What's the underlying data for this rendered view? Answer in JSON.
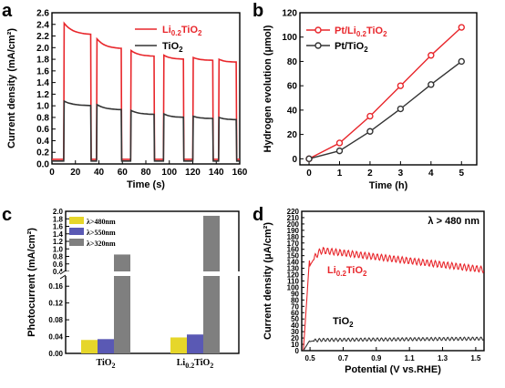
{
  "figure": {
    "panels": [
      {
        "letter": "a"
      },
      {
        "letter": "b"
      },
      {
        "letter": "c"
      },
      {
        "letter": "d"
      }
    ]
  },
  "colors": {
    "red": "#e8262b",
    "gray": "#333333",
    "yellow": "#e6d62a",
    "blue": "#5a59b4",
    "darkgray": "#7f7f7f"
  },
  "chart_data": [
    {
      "panel": "a",
      "type": "line",
      "xlabel": "Time (s)",
      "ylabel": "Current density (mA/cm²)",
      "xlim": [
        0,
        160
      ],
      "ylim": [
        0,
        2.6
      ],
      "xticks": [
        0,
        20,
        40,
        60,
        80,
        100,
        120,
        140,
        160
      ],
      "yticks": [
        0,
        0.2,
        0.4,
        0.6,
        0.8,
        1.0,
        1.2,
        1.4,
        1.6,
        1.8,
        2.0,
        2.2,
        2.4,
        2.6
      ],
      "ytick_labels": [
        "0.0",
        "0.2",
        "0.4",
        "0.6",
        "0.8",
        "1.0",
        "1.2",
        "1.4",
        "1.6",
        "1.8",
        "2.0",
        "2.2",
        "2.4",
        "2.6"
      ],
      "light_on": [
        [
          10,
          33
        ],
        [
          38,
          59
        ],
        [
          67,
          87
        ],
        [
          95,
          112
        ],
        [
          120,
          137
        ],
        [
          142,
          157
        ]
      ],
      "series": [
        {
          "name": "Li0.2TiO2",
          "sub": "0.2",
          "on_start": [
            2.42,
            2.15,
            1.95,
            1.87,
            1.83,
            1.8
          ],
          "on_end": [
            2.22,
            1.98,
            1.85,
            1.8,
            1.78,
            1.75
          ],
          "dark": 0.08
        },
        {
          "name": "TiO2",
          "sub": "2",
          "on_start": [
            1.08,
            1.02,
            0.92,
            0.86,
            0.82,
            0.8
          ],
          "on_end": [
            1.0,
            0.93,
            0.85,
            0.8,
            0.78,
            0.76
          ],
          "dark": 0.05
        }
      ],
      "legend": [
        {
          "base": "Li",
          "sub": "0.2",
          "rest": "TiO",
          "sub2": "2"
        },
        {
          "base": "TiO",
          "sub": "2"
        }
      ]
    },
    {
      "panel": "b",
      "type": "line",
      "xlabel": "Time (h)",
      "ylabel": "Hydrogen evolution (μmol)",
      "xlim": [
        -0.3,
        5.5
      ],
      "ylim": [
        -5,
        120
      ],
      "xticks": [
        0,
        1,
        2,
        3,
        4,
        5
      ],
      "yticks": [
        0,
        20,
        40,
        60,
        80,
        100,
        120
      ],
      "x": [
        0,
        1,
        2,
        3,
        4,
        5
      ],
      "series": [
        {
          "name": "Pt/Li0.2TiO2",
          "values": [
            0,
            13,
            35,
            60,
            85,
            108
          ]
        },
        {
          "name": "Pt/TiO2",
          "values": [
            0,
            6.5,
            22.5,
            41,
            61,
            80
          ]
        }
      ],
      "legend": [
        {
          "base": "Pt/Li",
          "sub": "0.2",
          "rest": "TiO",
          "sub2": "2"
        },
        {
          "base": "Pt/TiO",
          "sub": "2"
        }
      ]
    },
    {
      "panel": "c",
      "type": "bar",
      "ylabel": "Photocurrent (mA/cm²)",
      "categories": [
        {
          "base": "TiO",
          "sub": "2"
        },
        {
          "base": "Li",
          "sub": "0.2",
          "rest": "TiO",
          "sub2": "2"
        }
      ],
      "series": [
        {
          "name": "λ>480nm",
          "values": [
            0.032,
            0.038
          ]
        },
        {
          "name": "λ>550nm",
          "values": [
            0.034,
            0.045
          ]
        },
        {
          "name": "λ>320nm",
          "values": [
            0.85,
            1.88
          ]
        }
      ],
      "lower_yticks": [
        "0.00",
        "0.04",
        "0.08",
        "0.12",
        "0.16"
      ],
      "upper_yticks": [
        "0.4",
        "0.6",
        "0.8",
        "1.0",
        "1.2",
        "1.4",
        "1.6",
        "1.8",
        "2.0"
      ],
      "broken_axis": [
        0.18,
        0.4
      ]
    },
    {
      "panel": "d",
      "type": "line",
      "xlabel": "Potential (V vs.RHE)",
      "ylabel": "Current density (μA/cm²)",
      "xlim": [
        0.45,
        1.55
      ],
      "ylim": [
        0,
        220
      ],
      "xticks": [
        0.5,
        0.7,
        0.9,
        1.1,
        1.3,
        1.5
      ],
      "yticks": [
        0,
        10,
        20,
        30,
        40,
        50,
        60,
        70,
        80,
        90,
        100,
        110,
        120,
        130,
        140,
        150,
        160,
        170,
        180,
        190,
        200,
        210,
        220
      ],
      "annotation": "λ > 480 nm",
      "series": [
        {
          "name": "Li0.2TiO2",
          "peak": 158,
          "end": 128
        },
        {
          "name": "TiO2",
          "peak": 17,
          "end": 19
        }
      ],
      "labels": [
        {
          "base": "Li",
          "sub": "0.2",
          "rest": "TiO",
          "sub2": "2"
        },
        {
          "base": "TiO",
          "sub": "2"
        }
      ]
    }
  ]
}
